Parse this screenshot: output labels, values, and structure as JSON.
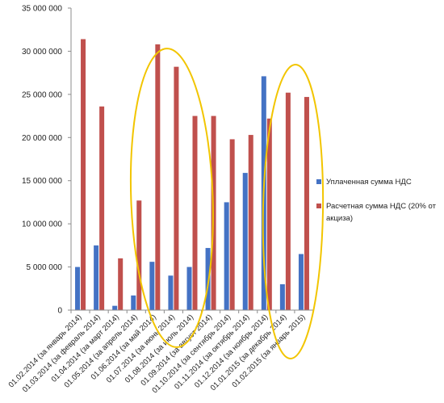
{
  "chart_data": {
    "type": "bar",
    "categories": [
      "01.02.2014 (за январь 2014)",
      "01.03.2014 (за февраль 2014)",
      "01.04.2014 (за март 2014)",
      "01.05.2014 (за апрель 2014)",
      "01.06.2014 (за май 2014)",
      "01.07.2014 (за июнь 2014)",
      "01.08.2014 (за июль 2014)",
      "01.09.2014 (за август 2014)",
      "01.10.2014 (за сентябрь 2014)",
      "01.11.2014 (за октябрь 2014)",
      "01.12.2014 (за ноябрь 2014)",
      "01.01.2015 (за декабрь 2014)",
      "01.02.2015 (за январь 2015)"
    ],
    "series": [
      {
        "name": "Уплаченная сумма НДС",
        "color": "#4472c4",
        "values": [
          5000000,
          7500000,
          500000,
          1700000,
          5600000,
          4000000,
          5000000,
          7200000,
          12500000,
          15900000,
          27100000,
          3000000,
          6500000
        ]
      },
      {
        "name": "Расчетная сумма НДС (20% от акциза)",
        "color": "#c0504d",
        "values": [
          31400000,
          23600000,
          6000000,
          12700000,
          30800000,
          28200000,
          22500000,
          22500000,
          19800000,
          20300000,
          22200000,
          25200000,
          24700000
        ]
      }
    ],
    "ylim": [
      0,
      35000000
    ],
    "yticks": [
      0,
      5000000,
      10000000,
      15000000,
      20000000,
      25000000,
      30000000,
      35000000
    ],
    "ytick_labels": [
      "0",
      "5 000 000",
      "10 000 000",
      "15 000 000",
      "20 000 000",
      "25 000 000",
      "30 000 000",
      "35 000 000"
    ],
    "title": "",
    "xlabel": "",
    "ylabel": "",
    "grid": false,
    "legend_position": "right",
    "annotations": [
      {
        "type": "ellipse",
        "color": "#f2c500",
        "around_categories": [
          "01.06.2014 (за май 2014)",
          "01.07.2014 (за июнь 2014)",
          "01.08.2014 (за июль 2014)"
        ]
      },
      {
        "type": "ellipse",
        "color": "#f2c500",
        "around_categories": [
          "01.01.2015 (за декабрь 2014)",
          "01.02.2015 (за январь 2015)"
        ]
      }
    ]
  }
}
